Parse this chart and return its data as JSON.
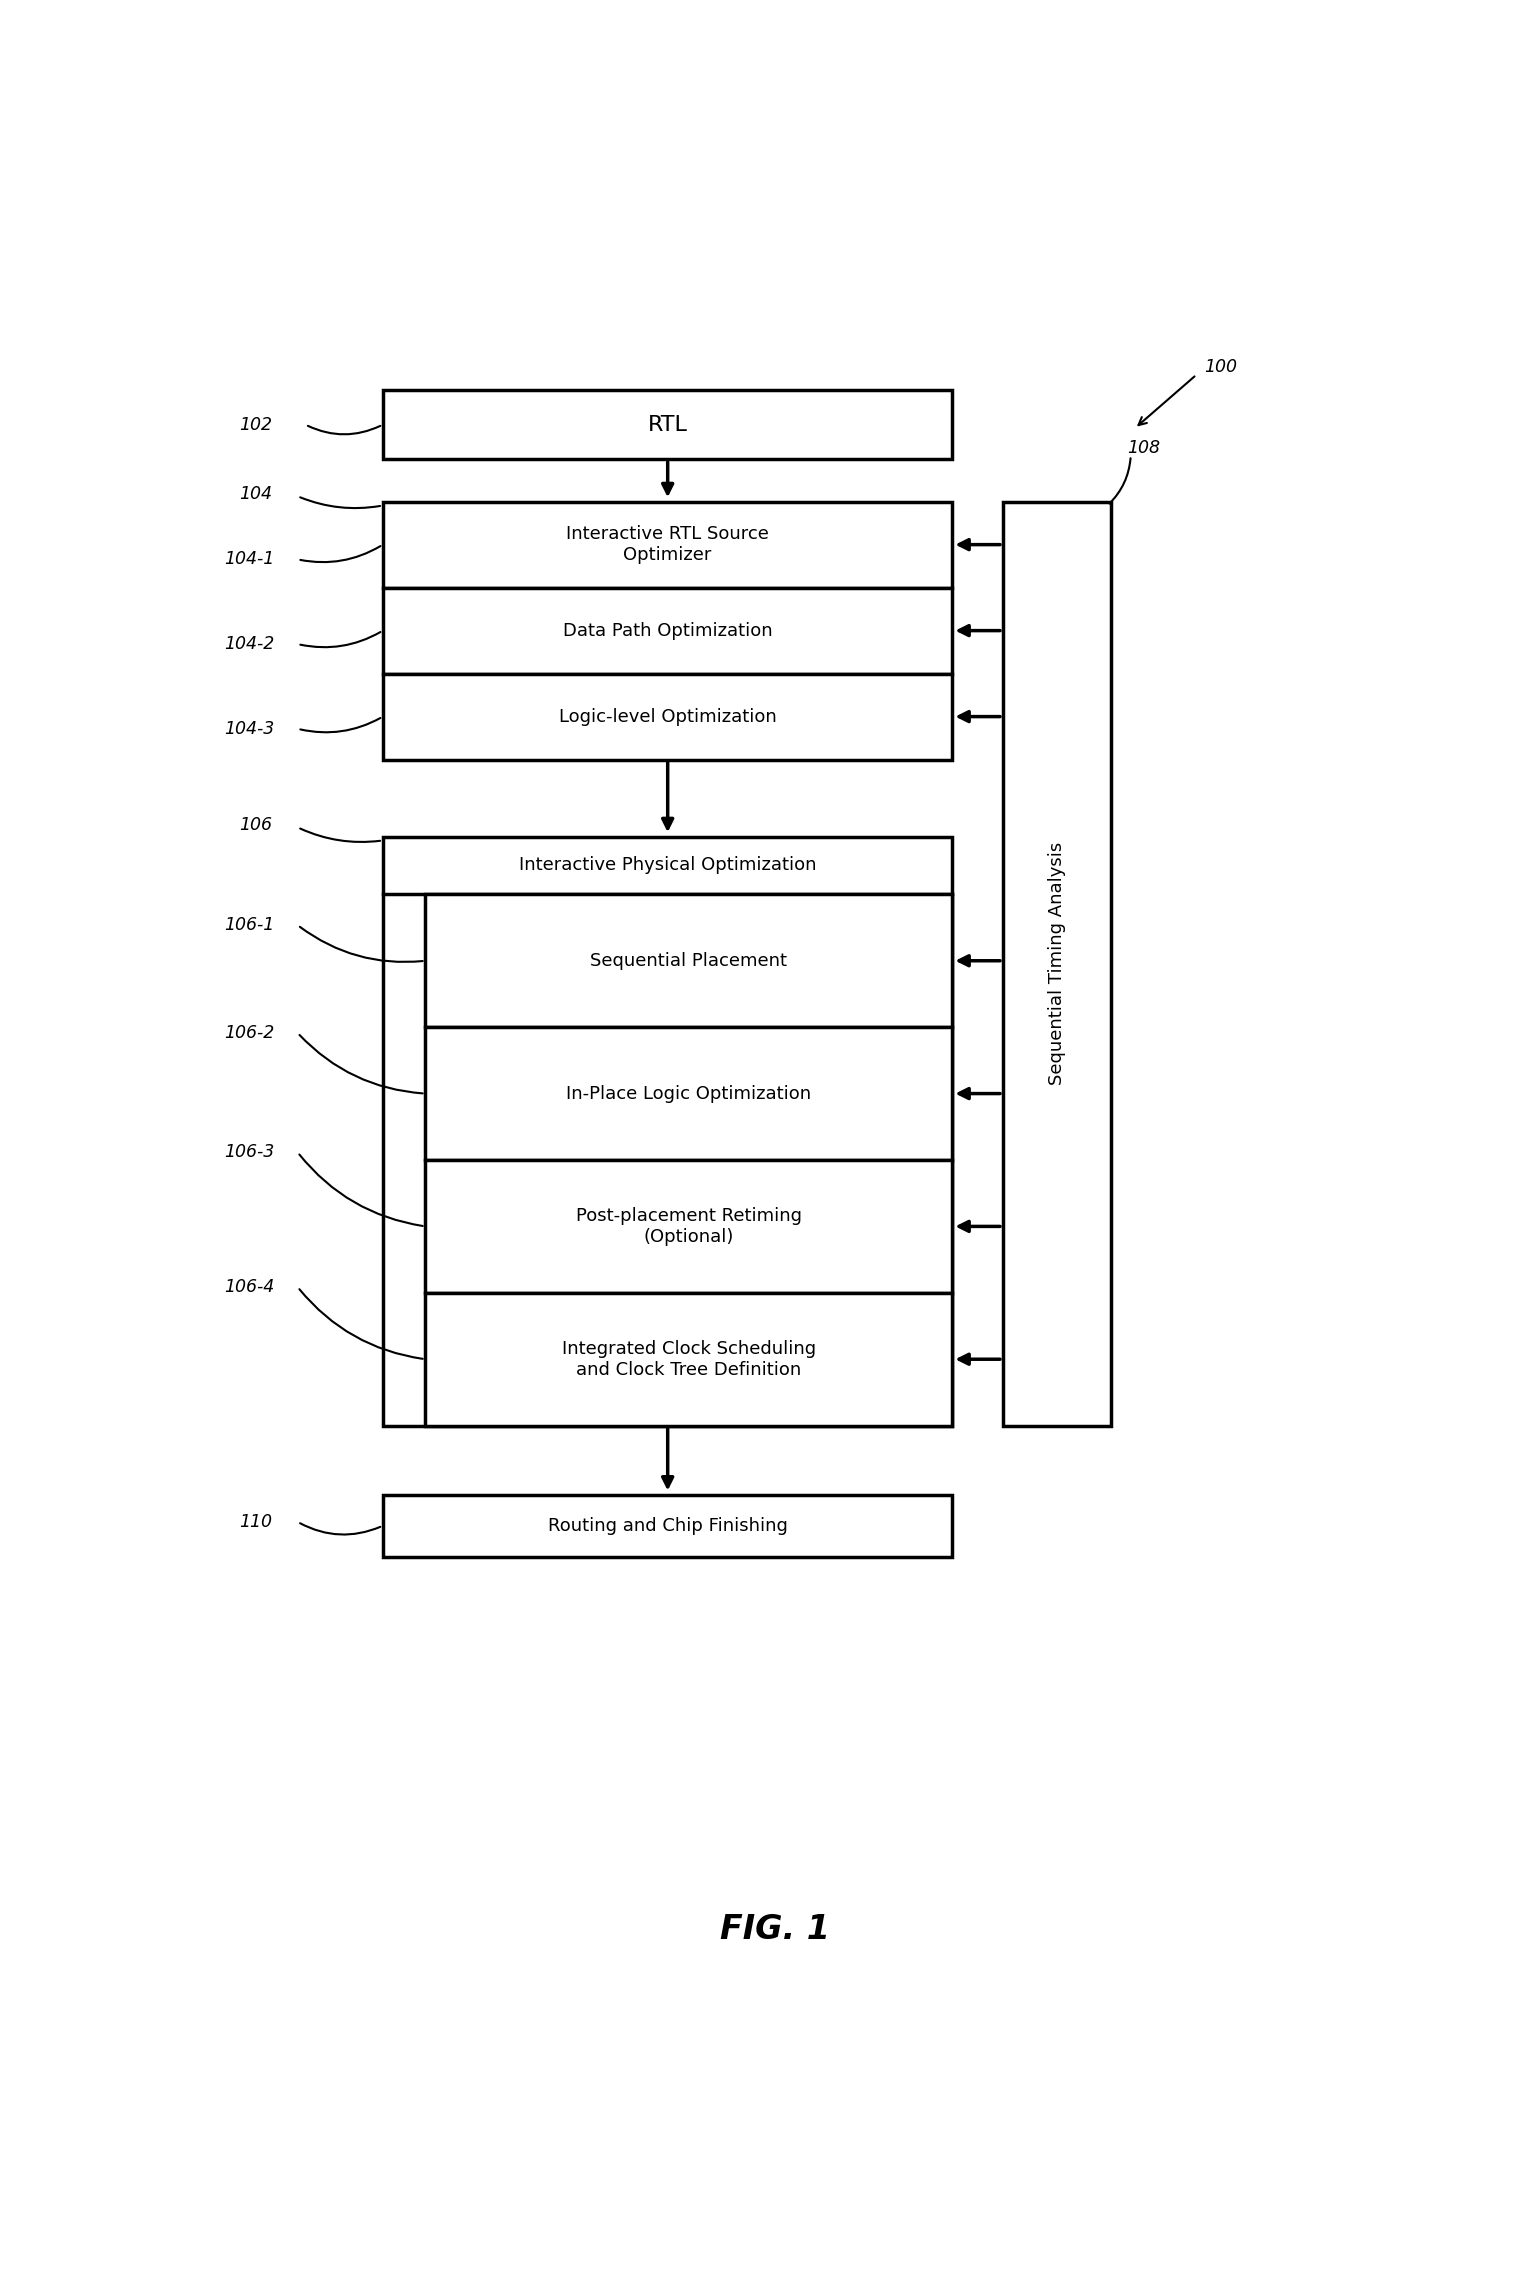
{
  "bg_color": "#ffffff",
  "fig_label": "FIG. 1",
  "ref_100": "100",
  "ref_102": "102",
  "ref_104": "104",
  "ref_104_1": "104-1",
  "ref_104_2": "104-2",
  "ref_104_3": "104-3",
  "ref_106": "106",
  "ref_106_1": "106-1",
  "ref_106_2": "106-2",
  "ref_106_3": "106-3",
  "ref_106_4": "106-4",
  "ref_108": "108",
  "ref_110": "110",
  "box_rtl_label": "RTL",
  "box_104_1_label": "Interactive RTL Source\nOptimizer",
  "box_104_2_label": "Data Path Optimization",
  "box_104_3_label": "Logic-level Optimization",
  "box_106_header": "Interactive Physical Optimization",
  "box_106_1_label": "Sequential Placement",
  "box_106_2_label": "In-Place Logic Optimization",
  "box_106_3_label": "Post-placement Retiming\n(Optional)",
  "box_106_4_label": "Integrated Clock Scheduling\nand Clock Tree Definition",
  "box_108_label": "Sequential Timing Analysis",
  "box_110_label": "Routing and Chip Finishing",
  "line_color": "#000000",
  "text_color": "#000000",
  "lw": 2.5
}
